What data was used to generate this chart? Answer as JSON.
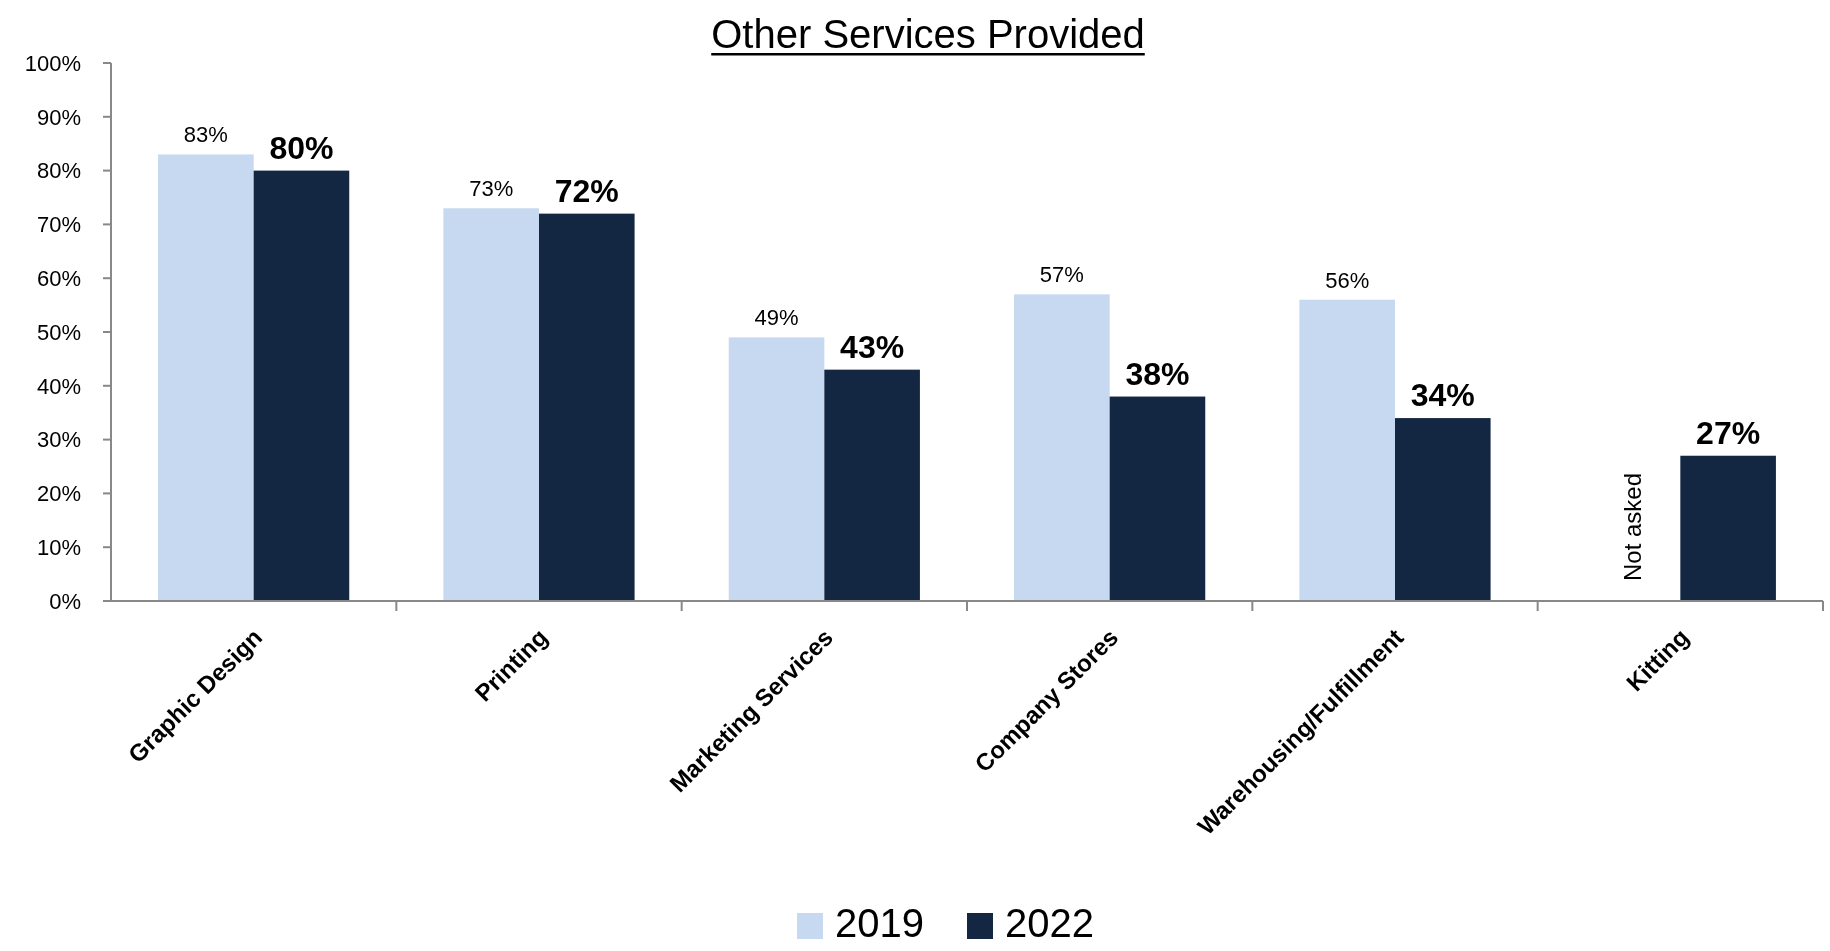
{
  "chart_data": {
    "type": "bar",
    "title": "Other Services Provided",
    "categories": [
      "Graphic Design",
      "Printing",
      "Marketing Services",
      "Company Stores",
      "Warehousing/Fulfillment",
      "Kitting"
    ],
    "series": [
      {
        "name": "2019",
        "color": "#c6d9f0",
        "values": [
          83,
          73,
          49,
          57,
          56,
          null
        ],
        "value_labels": [
          "83%",
          "73%",
          "49%",
          "57%",
          "56%",
          null
        ]
      },
      {
        "name": "2022",
        "color": "#132642",
        "values": [
          80,
          72,
          43,
          38,
          34,
          27
        ],
        "value_labels": [
          "80%",
          "72%",
          "43%",
          "38%",
          "34%",
          "27%"
        ]
      }
    ],
    "annotations": [
      "Not asked"
    ],
    "ylim": [
      0,
      100
    ],
    "yticks": [
      {
        "value": 0,
        "label": "0%"
      },
      {
        "value": 10,
        "label": "10%"
      },
      {
        "value": 20,
        "label": "20%"
      },
      {
        "value": 30,
        "label": "30%"
      },
      {
        "value": 40,
        "label": "40%"
      },
      {
        "value": 50,
        "label": "50%"
      },
      {
        "value": 60,
        "label": "60%"
      },
      {
        "value": 70,
        "label": "70%"
      },
      {
        "value": 80,
        "label": "80%"
      },
      {
        "value": 90,
        "label": "90%"
      },
      {
        "value": 100,
        "label": "100%"
      }
    ],
    "grid": false,
    "legend": "bottom"
  }
}
